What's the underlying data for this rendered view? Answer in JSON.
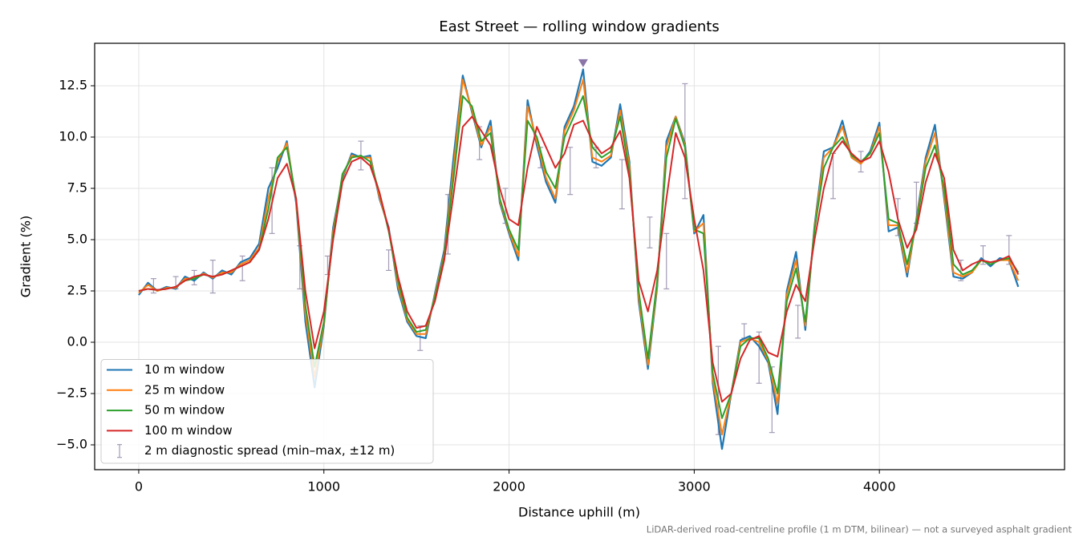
{
  "chart_data": {
    "type": "line",
    "title": "East Street — rolling window gradients",
    "x_label": "Distance uphill (m)",
    "y_label": "Gradient (%)",
    "footnote": "LiDAR-derived road-centreline profile (1 m DTM, bilinear) — not a surveyed asphalt gradient",
    "xlim": [
      -238,
      5000
    ],
    "ylim": [
      -6.21,
      14.57
    ],
    "xticks": [
      0,
      1000,
      2000,
      3000,
      4000
    ],
    "yticks": [
      {
        "value": -5,
        "label": "−5.0"
      },
      {
        "value": -2.5,
        "label": "−2.5"
      },
      {
        "value": 0,
        "label": "0.0"
      },
      {
        "value": 2.5,
        "label": "2.5"
      },
      {
        "value": 5,
        "label": "5.0"
      },
      {
        "value": 7.5,
        "label": "7.5"
      },
      {
        "value": 10,
        "label": "10.0"
      },
      {
        "value": 12.5,
        "label": "12.5"
      }
    ],
    "grid": true,
    "legend_loc": "lower left",
    "x": [
      0,
      50,
      100,
      150,
      200,
      250,
      300,
      350,
      400,
      450,
      500,
      550,
      600,
      650,
      700,
      750,
      800,
      850,
      900,
      950,
      1000,
      1050,
      1100,
      1150,
      1200,
      1250,
      1300,
      1350,
      1400,
      1450,
      1500,
      1550,
      1600,
      1650,
      1700,
      1750,
      1800,
      1850,
      1900,
      1950,
      2000,
      2050,
      2100,
      2150,
      2200,
      2250,
      2300,
      2350,
      2400,
      2450,
      2500,
      2550,
      2600,
      2650,
      2700,
      2750,
      2800,
      2850,
      2900,
      2950,
      3000,
      3050,
      3100,
      3150,
      3200,
      3250,
      3300,
      3350,
      3400,
      3450,
      3500,
      3550,
      3600,
      3650,
      3700,
      3750,
      3800,
      3850,
      3900,
      3950,
      4000,
      4050,
      4100,
      4150,
      4200,
      4250,
      4300,
      4350,
      4400,
      4450,
      4500,
      4550,
      4600,
      4650,
      4700,
      4750
    ],
    "series": [
      {
        "name": "10 m window",
        "color": "#1f77b4",
        "width": 2.2,
        "values": [
          2.3,
          2.9,
          2.5,
          2.7,
          2.6,
          3.2,
          3.0,
          3.4,
          3.1,
          3.5,
          3.3,
          3.9,
          4.1,
          4.8,
          7.5,
          8.5,
          9.8,
          6.8,
          1.0,
          -2.2,
          0.8,
          5.6,
          8.0,
          9.2,
          9.0,
          9.1,
          7.0,
          5.6,
          2.6,
          1.0,
          0.3,
          0.2,
          2.4,
          4.5,
          9.0,
          13.0,
          11.2,
          9.5,
          10.8,
          6.8,
          5.3,
          4.0,
          11.8,
          9.6,
          7.8,
          6.8,
          10.5,
          11.5,
          13.3,
          8.8,
          8.6,
          9.0,
          11.6,
          8.8,
          2.0,
          -1.3,
          2.7,
          9.8,
          11.0,
          9.7,
          5.3,
          6.2,
          -2.0,
          -5.2,
          -2.5,
          0.1,
          0.3,
          -0.2,
          -1.0,
          -3.5,
          2.5,
          4.4,
          0.6,
          5.7,
          9.3,
          9.5,
          10.8,
          9.0,
          8.7,
          9.3,
          10.7,
          5.4,
          5.6,
          3.2,
          6.0,
          9.0,
          10.6,
          7.0,
          3.2,
          3.1,
          3.4,
          4.1,
          3.7,
          4.1,
          4.0,
          2.7
        ]
      },
      {
        "name": "25 m window",
        "color": "#ff7f0e",
        "width": 2,
        "values": [
          2.4,
          2.8,
          2.5,
          2.65,
          2.65,
          3.1,
          3.1,
          3.35,
          3.15,
          3.4,
          3.4,
          3.8,
          4.0,
          4.6,
          7.0,
          8.8,
          9.7,
          6.9,
          1.4,
          -1.7,
          0.9,
          5.4,
          8.1,
          9.1,
          9.0,
          9.0,
          7.1,
          5.5,
          2.8,
          1.1,
          0.4,
          0.4,
          2.3,
          4.3,
          8.5,
          12.8,
          11.3,
          9.6,
          10.5,
          6.9,
          5.4,
          4.2,
          11.5,
          9.8,
          8.0,
          7.0,
          10.3,
          11.3,
          12.8,
          9.0,
          8.8,
          9.1,
          11.3,
          8.6,
          2.2,
          -1.1,
          2.8,
          9.5,
          11.0,
          9.6,
          5.4,
          5.8,
          -1.8,
          -4.5,
          -2.5,
          0.0,
          0.2,
          0.0,
          -0.9,
          -3.0,
          2.3,
          4.0,
          0.8,
          5.6,
          9.0,
          9.5,
          10.5,
          9.0,
          8.7,
          9.2,
          10.5,
          5.7,
          5.7,
          3.4,
          5.9,
          8.8,
          10.2,
          7.2,
          3.4,
          3.2,
          3.4,
          4.0,
          3.8,
          4.0,
          4.0,
          3.0
        ]
      },
      {
        "name": "50 m window",
        "color": "#2ca02c",
        "width": 2,
        "values": [
          2.5,
          2.6,
          2.55,
          2.6,
          2.7,
          3.0,
          3.1,
          3.3,
          3.2,
          3.3,
          3.5,
          3.7,
          3.9,
          4.5,
          6.5,
          9.0,
          9.5,
          7.0,
          1.8,
          -1.2,
          1.0,
          5.2,
          8.2,
          9.0,
          9.1,
          8.8,
          7.3,
          5.4,
          3.0,
          1.2,
          0.5,
          0.6,
          2.2,
          4.2,
          8.0,
          12.0,
          11.5,
          9.8,
          10.2,
          7.0,
          5.5,
          4.5,
          10.8,
          10.0,
          8.3,
          7.5,
          10.0,
          11.0,
          12.0,
          9.5,
          9.0,
          9.3,
          11.0,
          8.3,
          2.5,
          -0.8,
          3.0,
          9.0,
          10.9,
          9.5,
          5.5,
          5.3,
          -1.5,
          -3.7,
          -2.5,
          -0.2,
          0.2,
          0.2,
          -0.8,
          -2.5,
          2.0,
          3.6,
          1.0,
          5.5,
          8.5,
          9.5,
          10.0,
          9.1,
          8.8,
          9.2,
          10.2,
          6.0,
          5.8,
          3.8,
          5.8,
          8.5,
          9.6,
          7.5,
          3.8,
          3.3,
          3.5,
          4.0,
          3.8,
          4.0,
          4.1,
          3.4
        ]
      },
      {
        "name": "100 m window",
        "color": "#d62728",
        "width": 2,
        "values": [
          2.5,
          2.6,
          2.55,
          2.6,
          2.7,
          3.0,
          3.2,
          3.3,
          3.2,
          3.3,
          3.5,
          3.7,
          3.9,
          4.5,
          6.0,
          8.0,
          8.7,
          7.0,
          2.5,
          -0.3,
          1.5,
          5.0,
          7.8,
          8.8,
          9.0,
          8.6,
          7.3,
          5.5,
          3.2,
          1.5,
          0.7,
          0.8,
          2.0,
          4.0,
          7.2,
          10.5,
          11.0,
          10.3,
          9.6,
          7.5,
          6.0,
          5.7,
          8.5,
          10.5,
          9.5,
          8.5,
          9.2,
          10.6,
          10.8,
          9.8,
          9.2,
          9.5,
          10.3,
          8.0,
          3.0,
          1.5,
          3.5,
          7.0,
          10.2,
          9.0,
          6.0,
          3.5,
          -1.0,
          -2.9,
          -2.5,
          -0.8,
          0.1,
          0.3,
          -0.5,
          -0.7,
          1.5,
          2.8,
          2.0,
          5.0,
          7.5,
          9.2,
          9.8,
          9.2,
          8.8,
          9.0,
          9.8,
          8.3,
          6.0,
          4.6,
          5.5,
          7.8,
          9.2,
          8.0,
          4.5,
          3.5,
          3.8,
          4.0,
          3.9,
          4.0,
          4.2,
          3.3
        ]
      }
    ],
    "error_bars": {
      "name": "2 m diagnostic spread (min–max, ±12 m)",
      "color": "#a39bb5",
      "x": [
        80,
        200,
        300,
        400,
        560,
        720,
        870,
        1020,
        1200,
        1350,
        1520,
        1670,
        1840,
        1980,
        2170,
        2330,
        2470,
        2610,
        2760,
        2850,
        2950,
        3130,
        3270,
        3350,
        3420,
        3560,
        3750,
        3900,
        4100,
        4200,
        4440,
        4560,
        4700
      ],
      "low": [
        2.4,
        2.6,
        2.8,
        2.4,
        3.0,
        5.3,
        2.6,
        3.3,
        8.4,
        3.5,
        -0.4,
        4.3,
        8.9,
        5.8,
        8.5,
        7.2,
        8.5,
        6.5,
        4.6,
        2.6,
        7.0,
        -4.5,
        0.2,
        -2.0,
        -4.4,
        0.2,
        7.0,
        8.3,
        5.2,
        5.8,
        3.0,
        3.8,
        3.8
      ],
      "high": [
        3.1,
        3.2,
        3.5,
        4.0,
        4.2,
        8.5,
        4.7,
        4.2,
        9.8,
        4.5,
        0.8,
        7.2,
        10.5,
        7.5,
        9.5,
        9.5,
        9.5,
        8.9,
        6.1,
        5.3,
        12.6,
        -0.2,
        0.9,
        0.5,
        -1.2,
        1.8,
        9.2,
        9.3,
        7.0,
        7.8,
        4.0,
        4.7,
        5.2
      ]
    },
    "peak_marker": {
      "x": 2400,
      "y": 13.6,
      "color": "#8a74a8"
    }
  }
}
